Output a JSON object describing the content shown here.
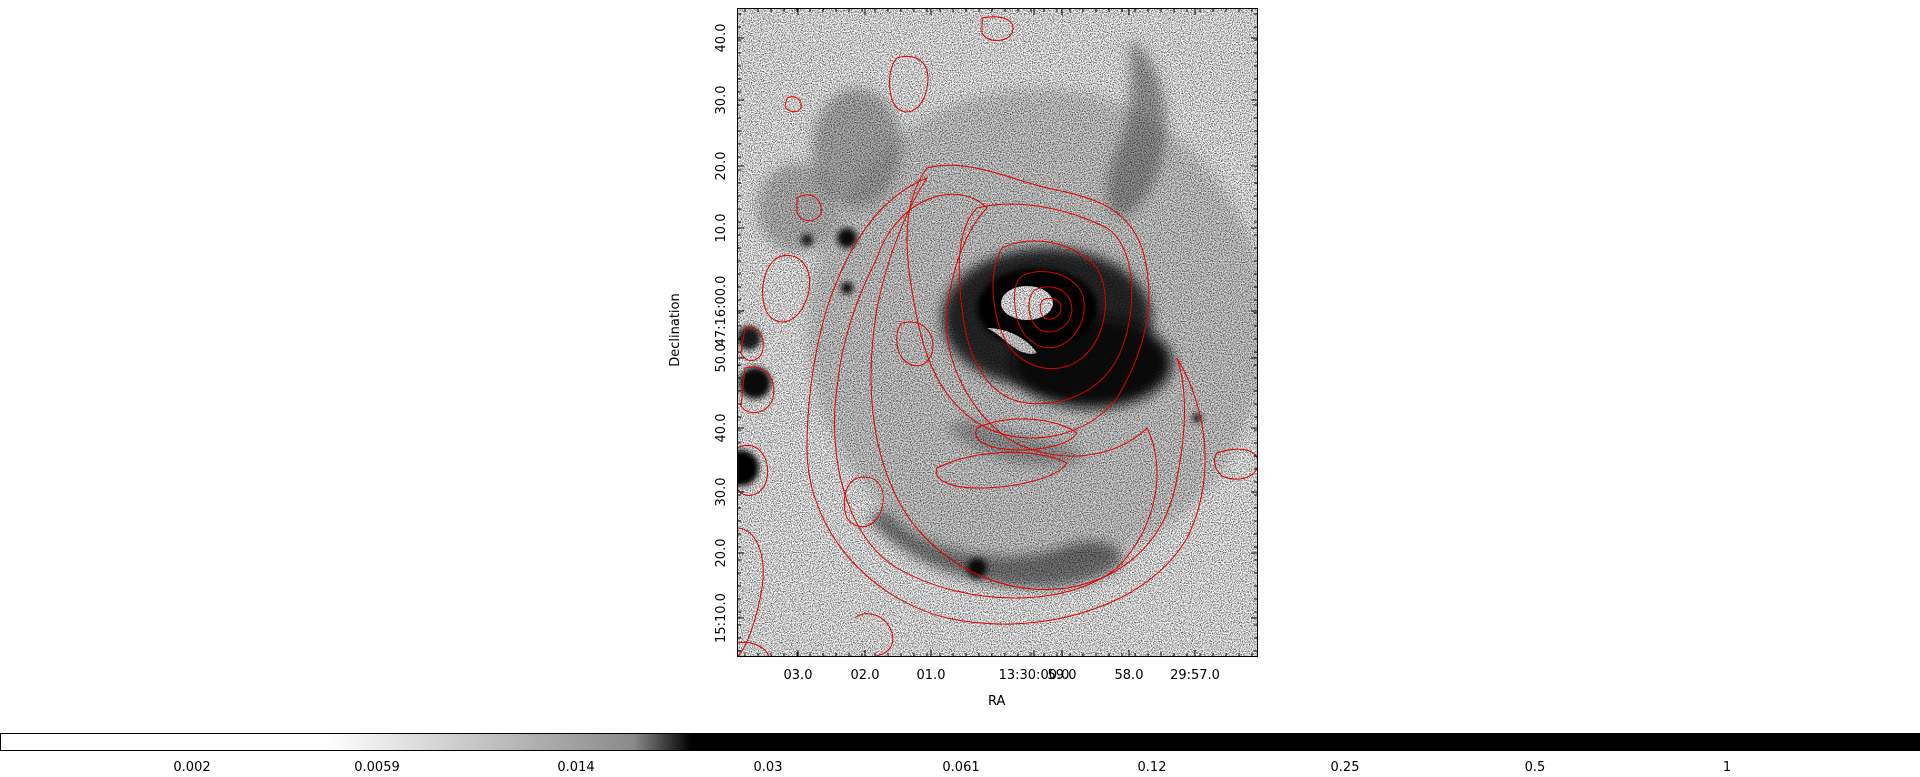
{
  "figure": {
    "xaxis_title": "RA",
    "yaxis_title": "Declination",
    "image_colormap": "grey (white = low, black = high)",
    "contour_color": "#e00000"
  },
  "axes": {
    "x_ticks": [
      "03.0",
      "02.0",
      "01.0",
      "13:30:00.0",
      "59.0",
      "58.0",
      "29:57.0"
    ],
    "y_ticks": [
      "15:10.0",
      "20.0",
      "30.0",
      "40.0",
      "50.0",
      "47:16:00.0",
      "10.0",
      "20.0",
      "30.0",
      "40.0"
    ]
  },
  "colorbar": {
    "labels": [
      "0.002",
      "0.0059",
      "0.014",
      "0.03",
      "0.061",
      "0.12",
      "0.25",
      "0.5",
      "1"
    ],
    "low_color": "#ffffff",
    "high_color": "#000000"
  }
}
